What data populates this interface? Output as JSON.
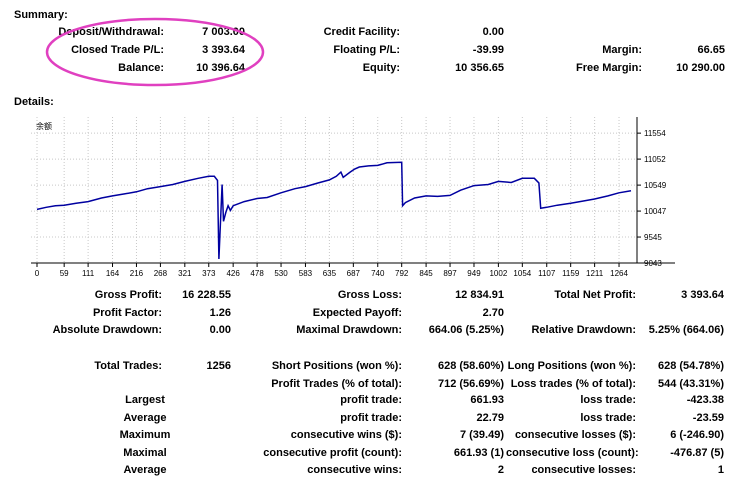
{
  "summary": {
    "section_title": "Summary:",
    "deposit_label": "Deposit/Withdrawal:",
    "deposit_value": "7 003.00",
    "closed_pl_label": "Closed Trade P/L:",
    "closed_pl_value": "3 393.64",
    "balance_label": "Balance:",
    "balance_value": "10 396.64",
    "credit_label": "Credit Facility:",
    "credit_value": "0.00",
    "floating_label": "Floating P/L:",
    "floating_value": "-39.99",
    "equity_label": "Equity:",
    "equity_value": "10 356.65",
    "margin_label": "Margin:",
    "margin_value": "66.65",
    "free_margin_label": "Free Margin:",
    "free_margin_value": "10 290.00",
    "highlight_color": "#e040c0"
  },
  "details": {
    "section_title": "Details:",
    "rows": [
      {
        "l1": "Gross Profit:",
        "v1": "16 228.55",
        "l2": "Gross Loss:",
        "v2": "12 834.91",
        "l3": "Total Net Profit:",
        "v3": "3 393.64"
      },
      {
        "l1": "Profit Factor:",
        "v1": "1.26",
        "l2": "Expected Payoff:",
        "v2": "2.70",
        "l3": "",
        "v3": ""
      },
      {
        "l1": "Absolute Drawdown:",
        "v1": "0.00",
        "l2": "Maximal Drawdown:",
        "v2": "664.06 (5.25%)",
        "l3": "Relative Drawdown:",
        "v3": "5.25% (664.06)"
      }
    ],
    "trades": {
      "total_label": "Total Trades:",
      "total_value": "1256",
      "short_label": "Short Positions (won %):",
      "short_value": "628 (58.60%)",
      "long_label": "Long Positions (won %):",
      "long_value": "628 (54.78%)",
      "profit_trades_label": "Profit Trades (% of total):",
      "profit_trades_value": "712 (56.69%)",
      "loss_trades_label": "Loss trades (% of total):",
      "loss_trades_value": "544 (43.31%)"
    },
    "extremes": [
      {
        "k": "Largest",
        "l1": "profit trade:",
        "v1": "661.93",
        "l2": "loss trade:",
        "v2": "-423.38"
      },
      {
        "k": "Average",
        "l1": "profit trade:",
        "v1": "22.79",
        "l2": "loss trade:",
        "v2": "-23.59"
      },
      {
        "k": "Maximum",
        "l1": "consecutive wins ($):",
        "v1": "7 (39.49)",
        "l2": "consecutive losses ($):",
        "v2": "6 (-246.90)"
      },
      {
        "k": "Maximal",
        "l1": "consecutive profit (count):",
        "v1": "661.93 (1)",
        "l2": "consecutive loss (count):",
        "v2": "-476.87 (5)"
      },
      {
        "k": "Average",
        "l1": "consecutive wins:",
        "v1": "2",
        "l2": "consecutive losses:",
        "v2": "1"
      }
    ]
  },
  "chart_data": {
    "type": "line",
    "title": "余额",
    "line_color": "#0000a0",
    "grid": true,
    "ylim": [
      9043,
      11750
    ],
    "xlim": [
      0,
      1290
    ],
    "y_ticks": [
      "11554",
      "11052",
      "10549",
      "10047",
      "9545",
      "9043"
    ],
    "x_ticks": [
      "0",
      "59",
      "111",
      "164",
      "216",
      "268",
      "321",
      "373",
      "426",
      "478",
      "530",
      "583",
      "635",
      "687",
      "740",
      "792",
      "845",
      "897",
      "949",
      "1002",
      "1054",
      "1107",
      "1159",
      "1211",
      "1264"
    ],
    "x": [
      0,
      20,
      40,
      59,
      85,
      111,
      140,
      164,
      190,
      216,
      240,
      268,
      295,
      321,
      350,
      373,
      385,
      392,
      395,
      402,
      405,
      410,
      415,
      420,
      426,
      450,
      478,
      500,
      530,
      560,
      583,
      610,
      635,
      650,
      660,
      665,
      680,
      690,
      700,
      720,
      740,
      760,
      792,
      794,
      800,
      820,
      845,
      870,
      897,
      920,
      949,
      980,
      1002,
      1030,
      1054,
      1080,
      1090,
      1094,
      1107,
      1130,
      1159,
      1185,
      1211,
      1240,
      1264,
      1290
    ],
    "y": [
      10080,
      10120,
      10150,
      10160,
      10200,
      10230,
      10300,
      10340,
      10380,
      10420,
      10480,
      10520,
      10560,
      10620,
      10680,
      10720,
      10720,
      10640,
      9120,
      10560,
      9850,
      10020,
      10150,
      10060,
      10150,
      10230,
      10290,
      10310,
      10400,
      10480,
      10520,
      10590,
      10650,
      10720,
      10800,
      10700,
      10800,
      10860,
      10900,
      10920,
      10930,
      10980,
      10990,
      10150,
      10210,
      10300,
      10340,
      10330,
      10350,
      10450,
      10540,
      10560,
      10620,
      10600,
      10680,
      10680,
      10590,
      10100,
      10120,
      10160,
      10200,
      10240,
      10280,
      10340,
      10400,
      10440
    ]
  }
}
